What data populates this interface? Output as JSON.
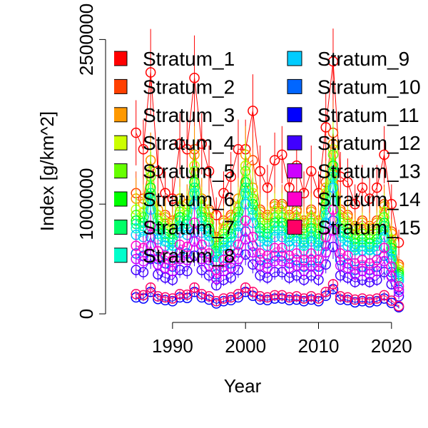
{
  "chart_data": {
    "type": "scatter",
    "xlabel": "Year",
    "ylabel": "Index [g/km^2]",
    "xlim": [
      1982,
      2025
    ],
    "ylim": [
      0,
      2600000
    ],
    "xticks": [
      1990,
      2000,
      2010,
      2020
    ],
    "yticks": [
      0,
      1000000,
      2500000
    ],
    "ytick_labels": [
      "0",
      "1000000",
      "2500000"
    ],
    "grid": false,
    "legend_position": "top",
    "x": [
      1985,
      1986,
      1987,
      1988,
      1989,
      1990,
      1991,
      1992,
      1993,
      1994,
      1995,
      1996,
      1997,
      1998,
      1999,
      2000,
      2001,
      2002,
      2003,
      2004,
      2005,
      2006,
      2007,
      2008,
      2009,
      2010,
      2011,
      2012,
      2013,
      2014,
      2015,
      2016,
      2017,
      2018,
      2019,
      2020,
      2021
    ],
    "series": [
      {
        "name": "Stratum_1",
        "color": "#FF0000",
        "values": [
          1650000,
          1500000,
          2200000,
          1300000,
          1100000,
          1050000,
          1550000,
          1500000,
          2150000,
          1550000,
          1300000,
          900000,
          1100000,
          1250000,
          1500000,
          1500000,
          1850000,
          1300000,
          1150000,
          1400000,
          1450000,
          1150000,
          1350000,
          1100000,
          1300000,
          1100000,
          1700000,
          2300000,
          1250000,
          1200000,
          1000000,
          1150000,
          1050000,
          1150000,
          1450000,
          1000000,
          650000
        ]
      },
      {
        "name": "Stratum_2",
        "color": "#FF4000",
        "values": [
          1100000,
          1050000,
          1400000,
          950000,
          900000,
          850000,
          1050000,
          1000000,
          1500000,
          1050000,
          950000,
          700000,
          850000,
          900000,
          1050000,
          1350000,
          1400000,
          950000,
          900000,
          1000000,
          1000000,
          900000,
          950000,
          850000,
          950000,
          850000,
          1200000,
          1650000,
          950000,
          900000,
          800000,
          850000,
          800000,
          850000,
          1000000,
          750000,
          450000
        ]
      },
      {
        "name": "Stratum_3",
        "color": "#FF9900",
        "values": [
          1050000,
          1000000,
          1400000,
          950000,
          880000,
          830000,
          1050000,
          1000000,
          1450000,
          1050000,
          930000,
          680000,
          830000,
          880000,
          1050000,
          1450000,
          1150000,
          930000,
          880000,
          980000,
          980000,
          880000,
          930000,
          830000,
          930000,
          830000,
          1150000,
          1550000,
          930000,
          880000,
          780000,
          830000,
          780000,
          830000,
          980000,
          730000,
          430000
        ]
      },
      {
        "name": "Stratum_4",
        "color": "#CCFF00",
        "values": [
          950000,
          930000,
          1300000,
          900000,
          830000,
          780000,
          980000,
          950000,
          1350000,
          980000,
          880000,
          650000,
          780000,
          830000,
          980000,
          1350000,
          1100000,
          880000,
          830000,
          930000,
          930000,
          830000,
          880000,
          780000,
          880000,
          780000,
          1100000,
          1500000,
          880000,
          830000,
          730000,
          780000,
          730000,
          780000,
          930000,
          680000,
          400000
        ]
      },
      {
        "name": "Stratum_5",
        "color": "#66FF00",
        "values": [
          900000,
          880000,
          1250000,
          850000,
          780000,
          730000,
          930000,
          900000,
          1300000,
          930000,
          830000,
          600000,
          730000,
          780000,
          930000,
          1300000,
          1050000,
          830000,
          780000,
          880000,
          880000,
          780000,
          830000,
          730000,
          830000,
          730000,
          1050000,
          1450000,
          830000,
          780000,
          680000,
          730000,
          680000,
          730000,
          880000,
          630000,
          380000
        ]
      },
      {
        "name": "Stratum_6",
        "color": "#00FF00",
        "values": [
          850000,
          830000,
          1150000,
          800000,
          730000,
          680000,
          880000,
          850000,
          1200000,
          880000,
          780000,
          570000,
          680000,
          730000,
          880000,
          1200000,
          1000000,
          780000,
          730000,
          830000,
          830000,
          730000,
          780000,
          680000,
          780000,
          680000,
          1000000,
          1350000,
          780000,
          730000,
          640000,
          680000,
          640000,
          680000,
          830000,
          600000,
          360000
        ]
      },
      {
        "name": "Stratum_7",
        "color": "#00FF66",
        "values": [
          820000,
          800000,
          1100000,
          770000,
          700000,
          650000,
          850000,
          820000,
          1150000,
          850000,
          750000,
          550000,
          650000,
          700000,
          850000,
          1150000,
          950000,
          750000,
          700000,
          800000,
          800000,
          700000,
          750000,
          650000,
          750000,
          650000,
          950000,
          1300000,
          750000,
          700000,
          610000,
          650000,
          610000,
          650000,
          800000,
          570000,
          340000
        ]
      },
      {
        "name": "Stratum_8",
        "color": "#00FFCC",
        "values": [
          780000,
          760000,
          1050000,
          730000,
          660000,
          620000,
          800000,
          780000,
          1100000,
          800000,
          710000,
          520000,
          620000,
          660000,
          800000,
          1100000,
          900000,
          710000,
          660000,
          760000,
          760000,
          660000,
          710000,
          620000,
          710000,
          620000,
          900000,
          1250000,
          710000,
          660000,
          580000,
          620000,
          580000,
          620000,
          760000,
          540000,
          320000
        ]
      },
      {
        "name": "Stratum_9",
        "color": "#00CCFF",
        "values": [
          720000,
          700000,
          950000,
          680000,
          620000,
          580000,
          740000,
          720000,
          1000000,
          740000,
          660000,
          480000,
          580000,
          620000,
          740000,
          1000000,
          830000,
          660000,
          620000,
          700000,
          700000,
          620000,
          660000,
          580000,
          660000,
          580000,
          830000,
          1150000,
          660000,
          620000,
          540000,
          580000,
          540000,
          580000,
          700000,
          500000,
          300000
        ]
      },
      {
        "name": "Stratum_10",
        "color": "#0066FF",
        "values": [
          550000,
          530000,
          700000,
          500000,
          460000,
          430000,
          560000,
          550000,
          740000,
          560000,
          490000,
          360000,
          430000,
          460000,
          560000,
          750000,
          620000,
          490000,
          460000,
          530000,
          530000,
          460000,
          490000,
          430000,
          490000,
          430000,
          620000,
          850000,
          490000,
          460000,
          400000,
          430000,
          400000,
          430000,
          530000,
          380000,
          220000
        ]
      },
      {
        "name": "Stratum_11",
        "color": "#0000FF",
        "values": [
          150000,
          140000,
          200000,
          135000,
          125000,
          115000,
          150000,
          145000,
          200000,
          150000,
          130000,
          95000,
          115000,
          125000,
          150000,
          200000,
          165000,
          130000,
          125000,
          140000,
          140000,
          125000,
          130000,
          115000,
          130000,
          115000,
          165000,
          225000,
          130000,
          125000,
          105000,
          115000,
          105000,
          115000,
          140000,
          100000,
          60000
        ]
      },
      {
        "name": "Stratum_12",
        "color": "#4000FF",
        "values": [
          400000,
          380000,
          500000,
          360000,
          330000,
          310000,
          400000,
          390000,
          530000,
          400000,
          350000,
          260000,
          310000,
          330000,
          400000,
          540000,
          450000,
          350000,
          330000,
          380000,
          380000,
          330000,
          350000,
          310000,
          350000,
          310000,
          450000,
          610000,
          350000,
          330000,
          290000,
          310000,
          290000,
          310000,
          380000,
          270000,
          160000
        ]
      },
      {
        "name": "Stratum_13",
        "color": "#CC00FF",
        "values": [
          500000,
          480000,
          620000,
          450000,
          420000,
          390000,
          500000,
          490000,
          660000,
          500000,
          440000,
          320000,
          390000,
          420000,
          500000,
          680000,
          560000,
          440000,
          420000,
          480000,
          480000,
          420000,
          440000,
          390000,
          440000,
          390000,
          560000,
          760000,
          440000,
          420000,
          360000,
          390000,
          360000,
          390000,
          480000,
          340000,
          200000
        ]
      },
      {
        "name": "Stratum_14",
        "color": "#FF00CC",
        "values": [
          620000,
          600000,
          800000,
          570000,
          530000,
          490000,
          630000,
          610000,
          830000,
          630000,
          550000,
          400000,
          490000,
          530000,
          630000,
          850000,
          700000,
          550000,
          530000,
          600000,
          600000,
          530000,
          550000,
          490000,
          550000,
          490000,
          700000,
          950000,
          550000,
          530000,
          460000,
          490000,
          460000,
          490000,
          600000,
          430000,
          250000
        ]
      },
      {
        "name": "Stratum_15",
        "color": "#FF0066",
        "values": [
          180000,
          170000,
          240000,
          160000,
          150000,
          140000,
          180000,
          175000,
          240000,
          180000,
          160000,
          115000,
          140000,
          150000,
          180000,
          240000,
          200000,
          160000,
          150000,
          170000,
          170000,
          150000,
          160000,
          140000,
          160000,
          140000,
          200000,
          270000,
          160000,
          150000,
          130000,
          140000,
          130000,
          140000,
          170000,
          120000,
          70000
        ]
      }
    ]
  }
}
